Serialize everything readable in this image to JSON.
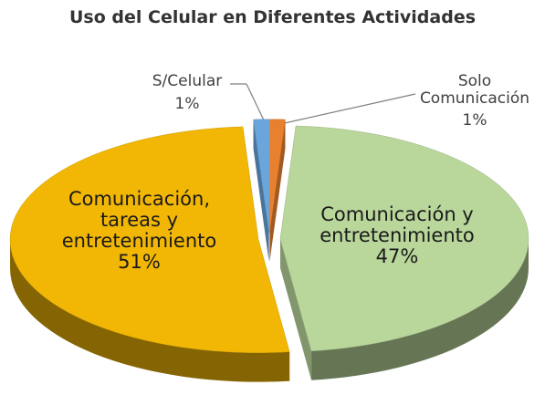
{
  "chart_data": {
    "type": "pie3d",
    "title": "Uso del Celular en Diferentes Actividades",
    "categories": [
      "Solo Comunicación",
      "Comunicación y entretenimiento",
      "Comunicación, tareas y entretenimiento",
      "S/Celular"
    ],
    "values": [
      1,
      47,
      51,
      1
    ],
    "value_labels": [
      "1%",
      "47%",
      "51%",
      "1%"
    ],
    "colors": [
      "#e8812f",
      "#b9d69b",
      "#f2b705",
      "#6aa6dc"
    ],
    "exploded": true
  }
}
